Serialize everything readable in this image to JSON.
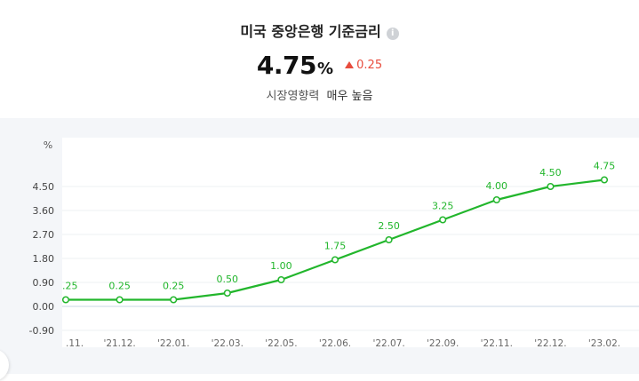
{
  "header": {
    "title": "미국 중앙은행 기준금리",
    "info_icon": "info-icon",
    "value": "4.75",
    "unit": "%",
    "delta": "0.25",
    "influence_label": "시장영향력",
    "influence_value": "매우 높음"
  },
  "chart_data": {
    "type": "line",
    "ylabel": "%",
    "ylim": [
      -0.9,
      5.4
    ],
    "yticks": [
      "4.50",
      "3.60",
      "2.70",
      "1.80",
      "0.90",
      "0.00",
      "-0.90"
    ],
    "categories": [
      ".11.",
      "'21.12.",
      "'22.01.",
      "'22.03.",
      "'22.05.",
      "'22.06.",
      "'22.07.",
      "'22.09.",
      "'22.11.",
      "'22.12.",
      "'23.02."
    ],
    "values": [
      0.25,
      0.25,
      0.25,
      0.5,
      1.0,
      1.75,
      2.5,
      3.25,
      4.0,
      4.5,
      4.75
    ],
    "data_labels": [
      ".25",
      "0.25",
      "0.25",
      "0.50",
      "1.00",
      "1.75",
      "2.50",
      "3.25",
      "4.00",
      "4.50",
      "4.75"
    ],
    "color": "#22b62c",
    "grid": true
  }
}
